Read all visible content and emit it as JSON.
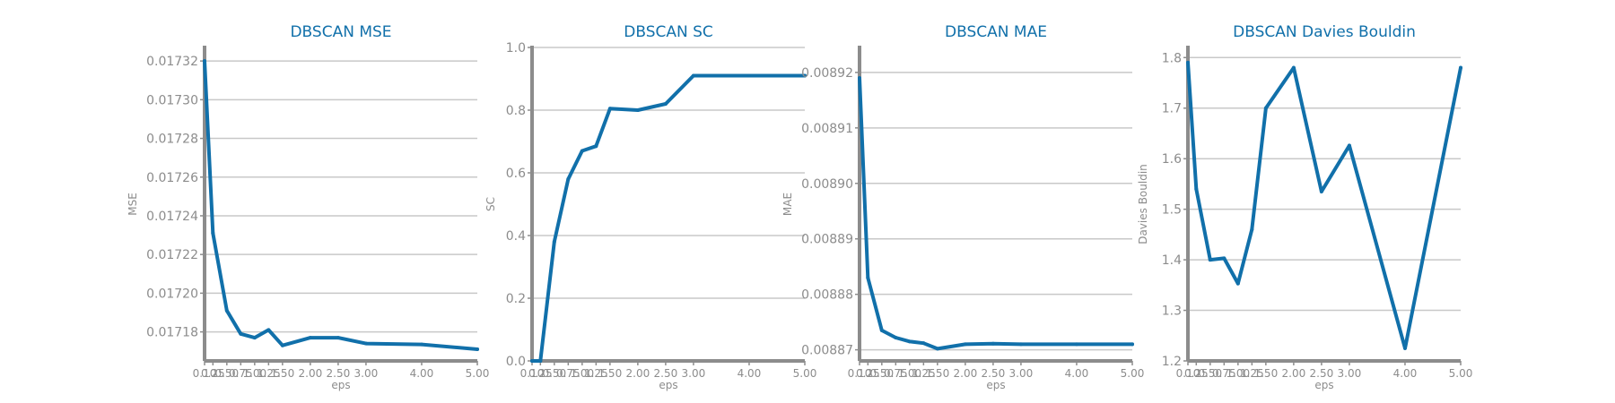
{
  "colors": {
    "line": "#1170aa",
    "title": "#1170aa",
    "grid": "#c8c8c8",
    "axis": "#8c8c8c",
    "tick_text": "#8c8c8c"
  },
  "chart_data": [
    {
      "type": "line",
      "title": "DBSCAN MSE",
      "xlabel": "eps",
      "ylabel": "MSE",
      "x": [
        0.1,
        0.25,
        0.5,
        0.75,
        1.0,
        1.25,
        1.5,
        2.0,
        2.5,
        3.0,
        4.0,
        5.0
      ],
      "values": [
        0.01732,
        0.017231,
        0.017191,
        0.017179,
        0.017177,
        0.017181,
        0.017173,
        0.017177,
        0.017177,
        0.017174,
        0.0171735,
        0.017171
      ],
      "xticks": [
        0.1,
        0.25,
        0.5,
        0.75,
        1.0,
        1.25,
        1.5,
        2.0,
        2.5,
        3.0,
        4.0,
        5.0
      ],
      "xtick_labels": [
        "0.10",
        "0.25",
        "0.50",
        "0.75",
        "1.00",
        "1.25",
        "1.50",
        "2.00",
        "2.50",
        "3.00",
        "4.00",
        "5.00"
      ],
      "yticks": [
        0.01718,
        0.0172,
        0.01722,
        0.01724,
        0.01726,
        0.01728,
        0.0173,
        0.01732
      ],
      "ytick_labels": [
        "0.01718",
        "0.01720",
        "0.01722",
        "0.01724",
        "0.01726",
        "0.01728",
        "0.01730",
        "0.01732"
      ],
      "xlim": [
        0.1,
        5.0
      ],
      "ylim": [
        0.017165,
        0.017327
      ],
      "grid": true
    },
    {
      "type": "line",
      "title": "DBSCAN SC",
      "xlabel": "eps",
      "ylabel": "SC",
      "x": [
        0.1,
        0.25,
        0.5,
        0.75,
        1.0,
        1.25,
        1.5,
        2.0,
        2.5,
        3.0,
        4.0,
        5.0
      ],
      "values": [
        0.0,
        0.0,
        0.38,
        0.58,
        0.67,
        0.685,
        0.805,
        0.8,
        0.82,
        0.91,
        0.91,
        0.91
      ],
      "xticks": [
        0.1,
        0.25,
        0.5,
        0.75,
        1.0,
        1.25,
        1.5,
        2.0,
        2.5,
        3.0,
        4.0,
        5.0
      ],
      "xtick_labels": [
        "0.10",
        "0.25",
        "0.50",
        "0.75",
        "1.00",
        "1.25",
        "1.50",
        "2.00",
        "2.50",
        "3.00",
        "4.00",
        "5.00"
      ],
      "yticks": [
        0.0,
        0.2,
        0.4,
        0.6,
        0.8,
        1.0
      ],
      "ytick_labels": [
        "0.0",
        "0.2",
        "0.4",
        "0.6",
        "0.8",
        "1.0"
      ],
      "xlim": [
        0.1,
        5.0
      ],
      "ylim": [
        0.0,
        1.0
      ],
      "grid": true
    },
    {
      "type": "line",
      "title": "DBSCAN MAE",
      "xlabel": "eps",
      "ylabel": "MAE",
      "x": [
        0.1,
        0.25,
        0.5,
        0.75,
        1.0,
        1.25,
        1.5,
        2.0,
        2.5,
        3.0,
        4.0,
        5.0
      ],
      "values": [
        0.008919,
        0.008883,
        0.0088735,
        0.0088722,
        0.0088715,
        0.0088712,
        0.0088702,
        0.008871,
        0.0088711,
        0.008871,
        0.008871,
        0.008871
      ],
      "xticks": [
        0.1,
        0.25,
        0.5,
        0.75,
        1.0,
        1.25,
        1.5,
        2.0,
        2.5,
        3.0,
        4.0,
        5.0
      ],
      "xtick_labels": [
        "0.10",
        "0.25",
        "0.50",
        "0.75",
        "1.00",
        "1.25",
        "1.50",
        "2.00",
        "2.50",
        "3.00",
        "4.00",
        "5.00"
      ],
      "yticks": [
        0.00887,
        0.00888,
        0.00889,
        0.0089,
        0.00891,
        0.00892
      ],
      "ytick_labels": [
        "0.00887",
        "0.00888",
        "0.00889",
        "0.00890",
        "0.00891",
        "0.00892"
      ],
      "xlim": [
        0.1,
        5.0
      ],
      "ylim": [
        0.008868,
        0.0089245
      ],
      "grid": true
    },
    {
      "type": "line",
      "title": "DBSCAN Davies Bouldin",
      "xlabel": "eps",
      "ylabel": "Davies Bouldin",
      "x": [
        0.1,
        0.25,
        0.5,
        0.75,
        1.0,
        1.25,
        1.5,
        2.0,
        2.5,
        3.0,
        4.0,
        5.0
      ],
      "values": [
        1.79,
        1.54,
        1.4,
        1.403,
        1.353,
        1.46,
        1.7,
        1.78,
        1.535,
        1.626,
        1.225,
        1.78
      ],
      "xticks": [
        0.1,
        0.25,
        0.5,
        0.75,
        1.0,
        1.25,
        1.5,
        2.0,
        2.5,
        3.0,
        4.0,
        5.0
      ],
      "xtick_labels": [
        "0.10",
        "0.25",
        "0.50",
        "0.75",
        "1.00",
        "1.25",
        "1.50",
        "2.00",
        "2.50",
        "3.00",
        "4.00",
        "5.00"
      ],
      "yticks": [
        1.2,
        1.3,
        1.4,
        1.5,
        1.6,
        1.7,
        1.8
      ],
      "ytick_labels": [
        "1.2",
        "1.3",
        "1.4",
        "1.5",
        "1.6",
        "1.7",
        "1.8"
      ],
      "xlim": [
        0.1,
        5.0
      ],
      "ylim": [
        1.2,
        1.82
      ],
      "grid": true
    }
  ]
}
